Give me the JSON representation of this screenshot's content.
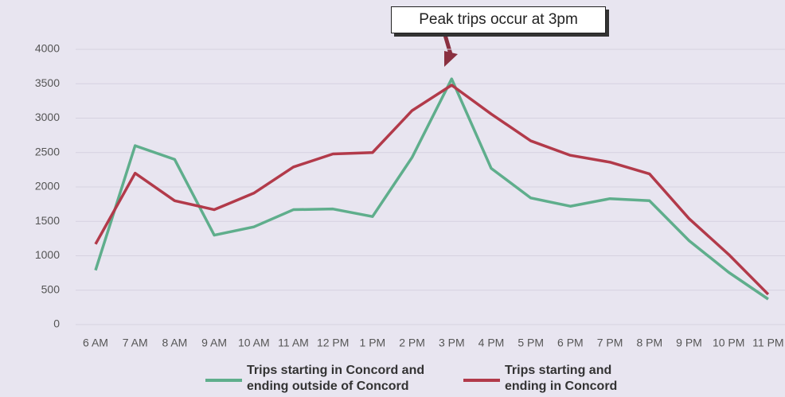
{
  "chart_data": {
    "type": "line",
    "annotation": "Peak trips occur at 3pm",
    "categories": [
      "6 AM",
      "7 AM",
      "8 AM",
      "9 AM",
      "10 AM",
      "11 AM",
      "12 PM",
      "1 PM",
      "2 PM",
      "3 PM",
      "4 PM",
      "5 PM",
      "6 PM",
      "7 PM",
      "8 PM",
      "9 PM",
      "10 PM",
      "11 PM"
    ],
    "series": [
      {
        "name": "Trips starting in Concord and ending outside of Concord",
        "color": "#5fae8c",
        "values": [
          790,
          2600,
          2400,
          1300,
          1420,
          1670,
          1680,
          1570,
          2430,
          3570,
          2270,
          1840,
          1720,
          1830,
          1800,
          1220,
          760,
          370
        ]
      },
      {
        "name": "Trips starting and ending in Concord",
        "color": "#b23a4a",
        "values": [
          1170,
          2200,
          1800,
          1670,
          1910,
          2290,
          2480,
          2500,
          3110,
          3480,
          3060,
          2670,
          2460,
          2360,
          2190,
          1540,
          1020,
          440
        ]
      }
    ],
    "ylim": [
      0,
      4000
    ],
    "yticks": [
      0,
      500,
      1000,
      1500,
      2000,
      2500,
      3000,
      3500,
      4000
    ],
    "grid": true
  }
}
